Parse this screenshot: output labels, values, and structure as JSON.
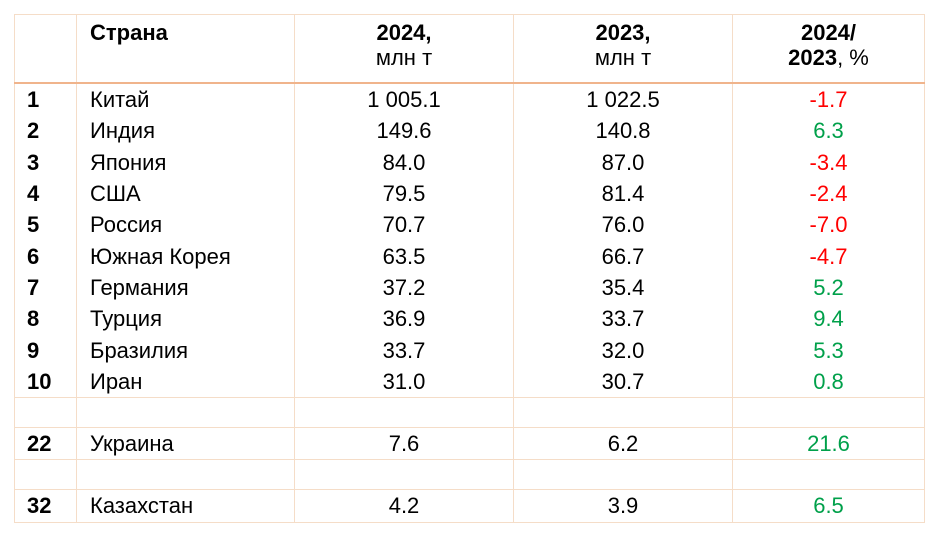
{
  "header": {
    "rank": "",
    "country": "Страна",
    "y2024_line1": "2024,",
    "y2024_line2": "млн т",
    "y2023_line1": "2023,",
    "y2023_line2": "млн т",
    "change_line1": "2024/",
    "change_line2_bold": "2023",
    "change_line2_rest": ", %"
  },
  "rows": [
    {
      "rank": "1",
      "country": "Китай",
      "y2024": "1 005.1",
      "y2023": "1 022.5",
      "change": "-1.7",
      "sign": "neg"
    },
    {
      "rank": "2",
      "country": "Индия",
      "y2024": "149.6",
      "y2023": "140.8",
      "change": "6.3",
      "sign": "pos"
    },
    {
      "rank": "3",
      "country": "Япония",
      "y2024": "84.0",
      "y2023": "87.0",
      "change": "-3.4",
      "sign": "neg"
    },
    {
      "rank": "4",
      "country": "США",
      "y2024": "79.5",
      "y2023": "81.4",
      "change": "-2.4",
      "sign": "neg"
    },
    {
      "rank": "5",
      "country": "Россия",
      "y2024": "70.7",
      "y2023": "76.0",
      "change": "-7.0",
      "sign": "neg"
    },
    {
      "rank": "6",
      "country": "Южная Корея",
      "y2024": "63.5",
      "y2023": "66.7",
      "change": "-4.7",
      "sign": "neg"
    },
    {
      "rank": "7",
      "country": "Германия",
      "y2024": "37.2",
      "y2023": "35.4",
      "change": "5.2",
      "sign": "pos"
    },
    {
      "rank": "8",
      "country": "Турция",
      "y2024": "36.9",
      "y2023": "33.7",
      "change": "9.4",
      "sign": "pos"
    },
    {
      "rank": "9",
      "country": "Бразилия",
      "y2024": "33.7",
      "y2023": "32.0",
      "change": "5.3",
      "sign": "pos"
    },
    {
      "rank": "10",
      "country": "Иран",
      "y2024": "31.0",
      "y2023": "30.7",
      "change": "0.8",
      "sign": "pos"
    }
  ],
  "extra_rows": [
    {
      "rank": "22",
      "country": "Украина",
      "y2024": "7.6",
      "y2023": "6.2",
      "change": "21.6",
      "sign": "pos"
    },
    {
      "rank": "32",
      "country": "Казахстан",
      "y2024": "4.2",
      "y2023": "3.9",
      "change": "6.5",
      "sign": "pos"
    }
  ],
  "colors": {
    "negative": "#ff0000",
    "positive": "#00a04a",
    "border": "#f5ddc8",
    "header_rule": "#f0b48c"
  }
}
